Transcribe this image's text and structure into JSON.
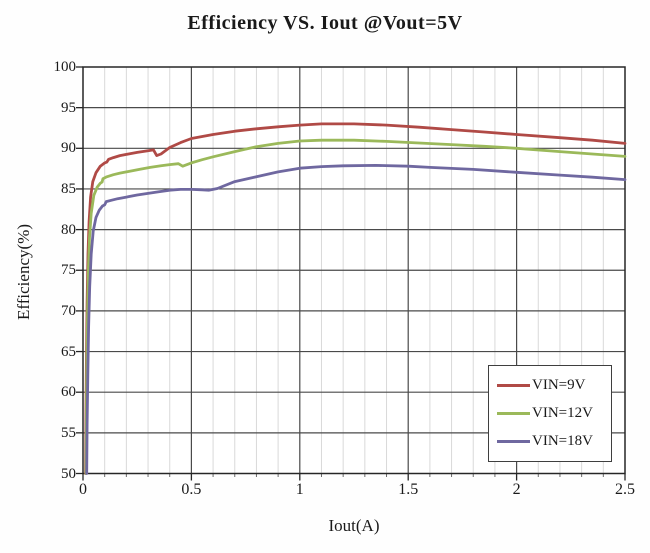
{
  "chart_data": {
    "type": "line",
    "title": "Efficiency VS. Iout @Vout=5V",
    "xlabel": "Iout(A)",
    "ylabel": "Efficiency(%)",
    "xlim": [
      0,
      2.5
    ],
    "ylim": [
      50,
      100
    ],
    "x_major_ticks": [
      0,
      0.5,
      1,
      1.5,
      2,
      2.5
    ],
    "x_tick_labels": [
      "0",
      "0.5",
      "1",
      "1.5",
      "2",
      "2.5"
    ],
    "x_minor_step": 0.1,
    "y_major_step": 5,
    "y_tick_labels": [
      "50",
      "55",
      "60",
      "65",
      "70",
      "75",
      "80",
      "85",
      "90",
      "95",
      "100"
    ],
    "grid": {
      "minor_color": "#d9d9d9",
      "major_color": "#4a4a4a",
      "border_color": "#262626",
      "background": "#ffffff"
    },
    "legend": {
      "position": "bottom-right"
    },
    "series": [
      {
        "name": "VIN=9V",
        "color": "#b04a46",
        "points": [
          [
            0.012,
            50
          ],
          [
            0.014,
            58
          ],
          [
            0.016,
            65
          ],
          [
            0.019,
            71
          ],
          [
            0.023,
            77
          ],
          [
            0.028,
            81
          ],
          [
            0.035,
            84
          ],
          [
            0.045,
            85.9
          ],
          [
            0.06,
            87.0
          ],
          [
            0.08,
            87.8
          ],
          [
            0.1,
            88.2
          ],
          [
            0.11,
            88.3
          ],
          [
            0.118,
            88.65
          ],
          [
            0.14,
            88.85
          ],
          [
            0.17,
            89.1
          ],
          [
            0.21,
            89.3
          ],
          [
            0.25,
            89.5
          ],
          [
            0.3,
            89.7
          ],
          [
            0.325,
            89.8
          ],
          [
            0.34,
            89.1
          ],
          [
            0.36,
            89.3
          ],
          [
            0.4,
            90.1
          ],
          [
            0.45,
            90.7
          ],
          [
            0.5,
            91.2
          ],
          [
            0.6,
            91.7
          ],
          [
            0.7,
            92.1
          ],
          [
            0.8,
            92.4
          ],
          [
            0.9,
            92.65
          ],
          [
            1.0,
            92.85
          ],
          [
            1.1,
            93.0
          ],
          [
            1.25,
            93.0
          ],
          [
            1.4,
            92.85
          ],
          [
            1.55,
            92.6
          ],
          [
            1.7,
            92.3
          ],
          [
            1.85,
            92.0
          ],
          [
            2.0,
            91.7
          ],
          [
            2.2,
            91.3
          ],
          [
            2.35,
            91.0
          ],
          [
            2.5,
            90.6
          ]
        ]
      },
      {
        "name": "VIN=12V",
        "color": "#9bb95a",
        "points": [
          [
            0.014,
            50
          ],
          [
            0.016,
            58
          ],
          [
            0.018,
            64
          ],
          [
            0.021,
            70
          ],
          [
            0.025,
            75
          ],
          [
            0.03,
            79
          ],
          [
            0.038,
            82
          ],
          [
            0.05,
            84.2
          ],
          [
            0.065,
            85.2
          ],
          [
            0.08,
            85.7
          ],
          [
            0.088,
            85.85
          ],
          [
            0.092,
            86.25
          ],
          [
            0.11,
            86.5
          ],
          [
            0.14,
            86.75
          ],
          [
            0.17,
            86.95
          ],
          [
            0.21,
            87.15
          ],
          [
            0.26,
            87.4
          ],
          [
            0.31,
            87.65
          ],
          [
            0.36,
            87.85
          ],
          [
            0.4,
            88.0
          ],
          [
            0.44,
            88.1
          ],
          [
            0.46,
            87.8
          ],
          [
            0.5,
            88.2
          ],
          [
            0.55,
            88.6
          ],
          [
            0.6,
            88.95
          ],
          [
            0.7,
            89.6
          ],
          [
            0.75,
            89.9
          ],
          [
            0.8,
            90.2
          ],
          [
            0.9,
            90.6
          ],
          [
            1.0,
            90.9
          ],
          [
            1.1,
            91.0
          ],
          [
            1.25,
            91.0
          ],
          [
            1.4,
            90.85
          ],
          [
            1.55,
            90.65
          ],
          [
            1.7,
            90.45
          ],
          [
            1.85,
            90.25
          ],
          [
            2.0,
            90.0
          ],
          [
            2.2,
            89.6
          ],
          [
            2.35,
            89.3
          ],
          [
            2.5,
            89.0
          ]
        ]
      },
      {
        "name": "VIN=18V",
        "color": "#6f68a0",
        "points": [
          [
            0.017,
            50
          ],
          [
            0.019,
            56
          ],
          [
            0.022,
            62
          ],
          [
            0.026,
            68
          ],
          [
            0.031,
            73
          ],
          [
            0.038,
            77
          ],
          [
            0.047,
            79.8
          ],
          [
            0.06,
            81.5
          ],
          [
            0.075,
            82.4
          ],
          [
            0.09,
            82.9
          ],
          [
            0.1,
            83.05
          ],
          [
            0.107,
            83.45
          ],
          [
            0.13,
            83.6
          ],
          [
            0.16,
            83.8
          ],
          [
            0.2,
            84.0
          ],
          [
            0.25,
            84.25
          ],
          [
            0.3,
            84.45
          ],
          [
            0.35,
            84.65
          ],
          [
            0.4,
            84.85
          ],
          [
            0.45,
            84.95
          ],
          [
            0.5,
            84.95
          ],
          [
            0.55,
            84.9
          ],
          [
            0.58,
            84.85
          ],
          [
            0.62,
            85.05
          ],
          [
            0.7,
            85.9
          ],
          [
            0.8,
            86.5
          ],
          [
            0.9,
            87.1
          ],
          [
            1.0,
            87.55
          ],
          [
            1.1,
            87.75
          ],
          [
            1.2,
            87.85
          ],
          [
            1.35,
            87.9
          ],
          [
            1.5,
            87.8
          ],
          [
            1.6,
            87.65
          ],
          [
            1.8,
            87.4
          ],
          [
            2.0,
            87.05
          ],
          [
            2.2,
            86.7
          ],
          [
            2.35,
            86.45
          ],
          [
            2.5,
            86.15
          ]
        ]
      }
    ]
  }
}
